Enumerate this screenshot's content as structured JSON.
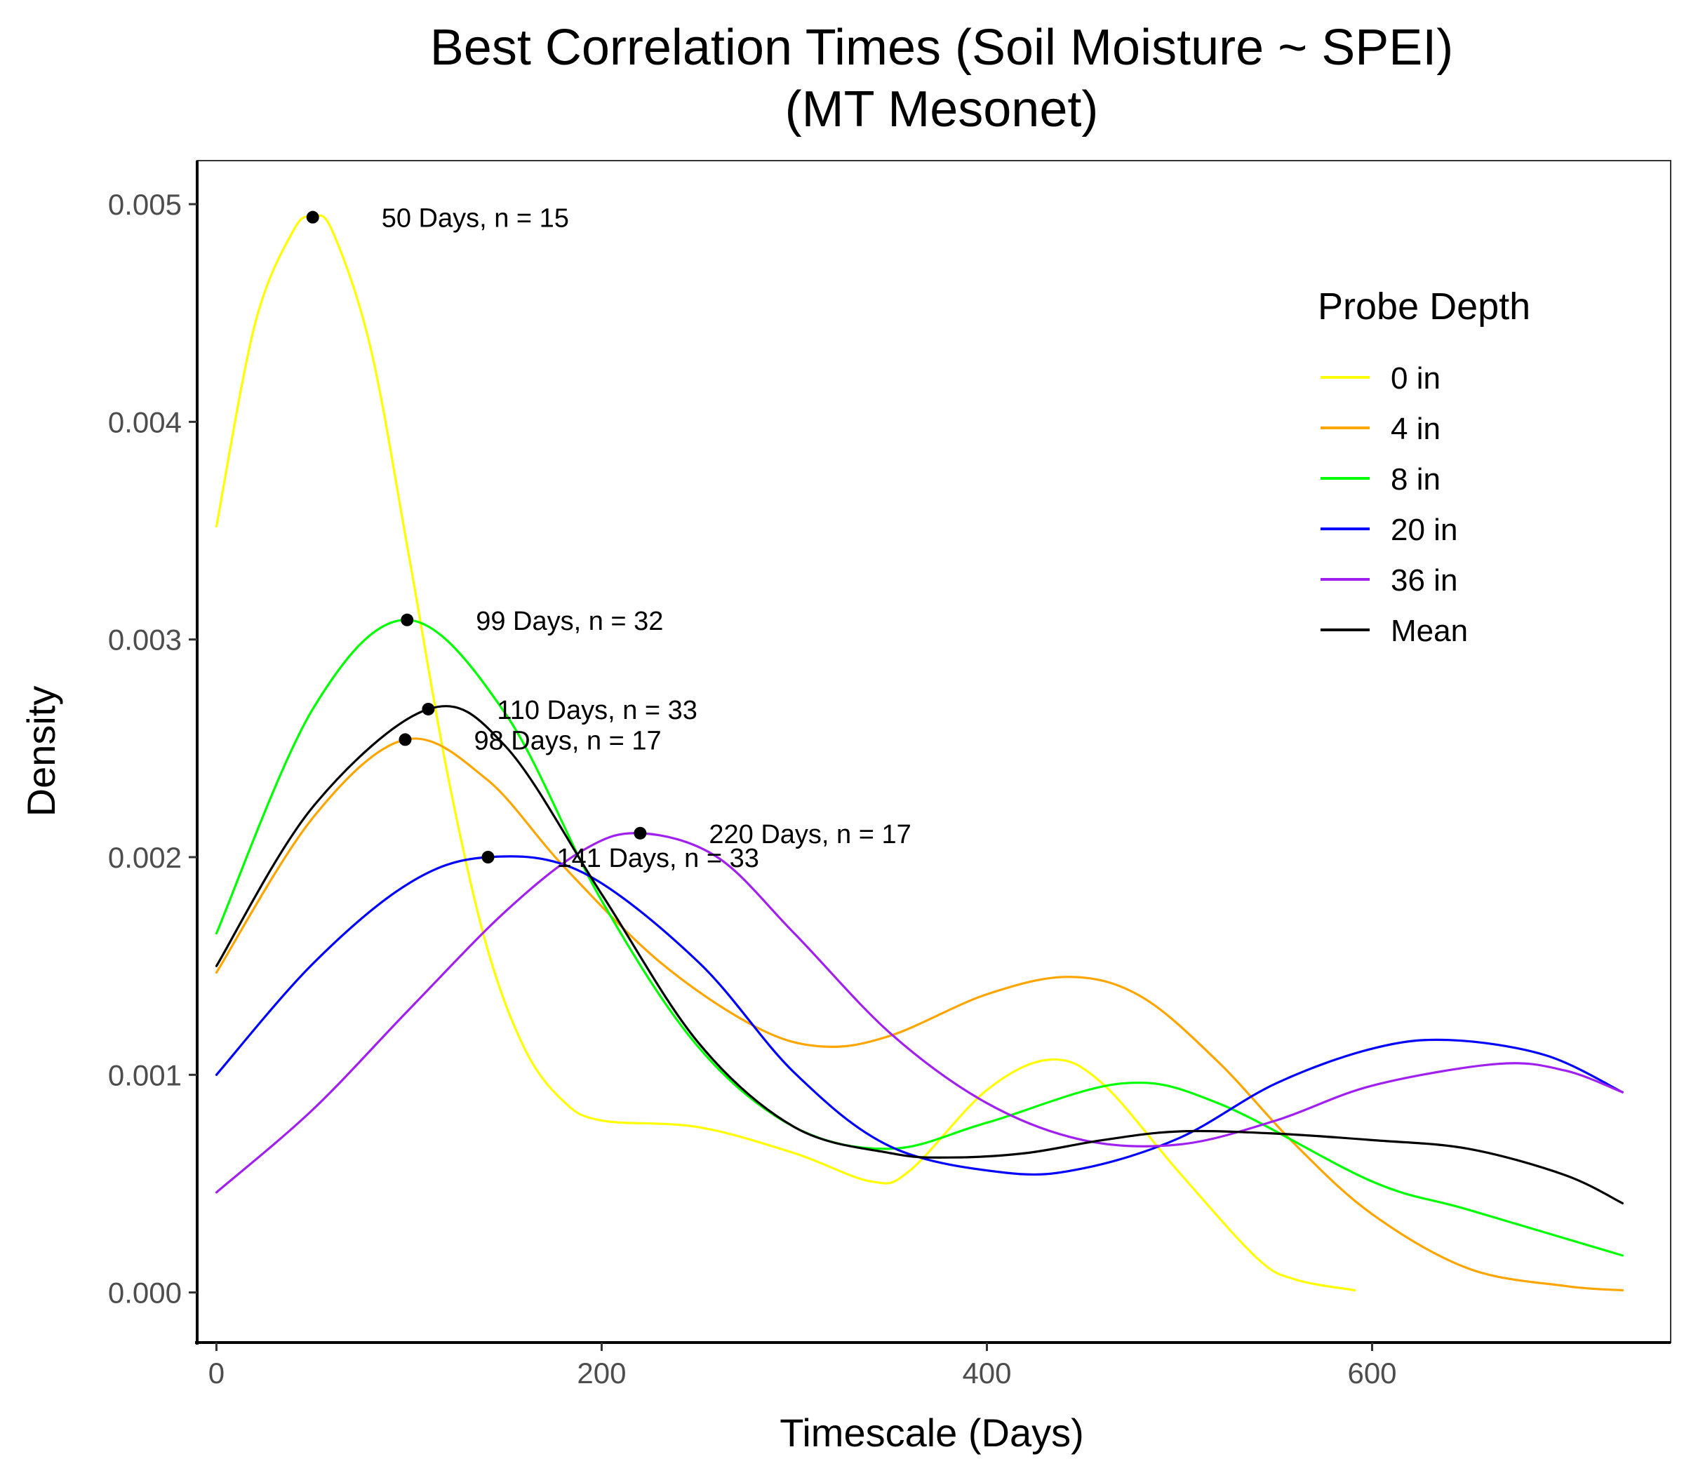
{
  "chart_data": {
    "type": "line",
    "title": [
      "Best Correlation Times (Soil Moisture ~ SPEI)",
      "(MT Mesonet)"
    ],
    "xlabel": "Timescale (Days)",
    "ylabel": "Density",
    "xlim": [
      -10,
      755
    ],
    "ylim": [
      -0.00023,
      0.0052
    ],
    "x_ticks": [
      0,
      200,
      400,
      600
    ],
    "x_tick_labels": [
      "0",
      "200",
      "400",
      "600"
    ],
    "y_ticks": [
      0,
      0.001,
      0.002,
      0.003,
      0.004,
      0.005
    ],
    "y_tick_labels": [
      "0.000",
      "0.001",
      "0.002",
      "0.003",
      "0.004",
      "0.005"
    ],
    "grid": false,
    "legend": {
      "title": "Probe Depth",
      "placement": "right"
    },
    "series": [
      {
        "name": "0 in",
        "color": "#ffff00",
        "x": [
          0,
          20,
          40,
          50,
          60,
          80,
          100,
          120,
          140,
          160,
          180,
          200,
          250,
          300,
          340,
          360,
          400,
          433,
          460,
          500,
          540,
          560,
          591
        ],
        "y": [
          0.00352,
          0.00445,
          0.00488,
          0.00494,
          0.00488,
          0.00434,
          0.00338,
          0.00238,
          0.0016,
          0.00112,
          0.00088,
          0.00079,
          0.00076,
          0.00064,
          0.00051,
          0.00056,
          0.00093,
          0.00107,
          0.00096,
          0.00055,
          0.00016,
          6e-05,
          1e-05
        ]
      },
      {
        "name": "4 in",
        "color": "#ffa500",
        "x": [
          0,
          50,
          98,
          140,
          180,
          230,
          280,
          315,
          350,
          400,
          443,
          480,
          520,
          560,
          600,
          650,
          700,
          730
        ],
        "y": [
          0.00147,
          0.00218,
          0.00254,
          0.00236,
          0.00196,
          0.00152,
          0.00122,
          0.00113,
          0.00118,
          0.00137,
          0.00145,
          0.00136,
          0.00106,
          0.00068,
          0.00036,
          0.00011,
          3e-05,
          1e-05
        ]
      },
      {
        "name": "8 in",
        "color": "#00ff00",
        "x": [
          0,
          50,
          99,
          150,
          200,
          250,
          300,
          350,
          400,
          470,
          520,
          600,
          650,
          730
        ],
        "y": [
          0.00165,
          0.00268,
          0.00309,
          0.00266,
          0.0018,
          0.00113,
          0.00076,
          0.00066,
          0.00078,
          0.00096,
          0.00087,
          0.00051,
          0.00038,
          0.00017
        ]
      },
      {
        "name": "20 in",
        "color": "#0000ff",
        "x": [
          0,
          50,
          100,
          141,
          190,
          250,
          300,
          350,
          410,
          450,
          500,
          550,
          600,
          640,
          690,
          730
        ],
        "y": [
          0.001,
          0.00151,
          0.00188,
          0.002,
          0.00193,
          0.00152,
          0.00101,
          0.00067,
          0.00055,
          0.00057,
          0.00071,
          0.00096,
          0.00112,
          0.00116,
          0.00109,
          0.00092
        ]
      },
      {
        "name": "36 in",
        "color": "#a020f0",
        "x": [
          0,
          50,
          100,
          150,
          190,
          220,
          260,
          300,
          350,
          400,
          450,
          500,
          550,
          600,
          665,
          700,
          730
        ],
        "y": [
          0.00046,
          0.00084,
          0.0013,
          0.00175,
          0.00203,
          0.00211,
          0.002,
          0.00165,
          0.00119,
          0.00087,
          0.0007,
          0.00068,
          0.00079,
          0.00095,
          0.00105,
          0.00102,
          0.00092
        ]
      },
      {
        "name": "Mean",
        "color": "#000000",
        "x": [
          0,
          50,
          110,
          150,
          200,
          250,
          300,
          350,
          380,
          420,
          460,
          500,
          550,
          600,
          650,
          700,
          730
        ],
        "y": [
          0.0015,
          0.00223,
          0.00268,
          0.00251,
          0.00183,
          0.00115,
          0.00076,
          0.00064,
          0.00062,
          0.00064,
          0.0007,
          0.00074,
          0.00073,
          0.0007,
          0.00066,
          0.00054,
          0.00041
        ]
      }
    ],
    "peaks": [
      {
        "x": 50,
        "y": 0.00494,
        "label": "50 Days, n = 15"
      },
      {
        "x": 99,
        "y": 0.00309,
        "label": "99 Days, n = 32"
      },
      {
        "x": 110,
        "y": 0.00268,
        "label": "110 Days, n = 33"
      },
      {
        "x": 98,
        "y": 0.00254,
        "label": "98 Days, n = 17"
      },
      {
        "x": 220,
        "y": 0.00211,
        "label": "220 Days, n = 17"
      },
      {
        "x": 141,
        "y": 0.002,
        "label": "141 Days, n = 33"
      }
    ]
  }
}
